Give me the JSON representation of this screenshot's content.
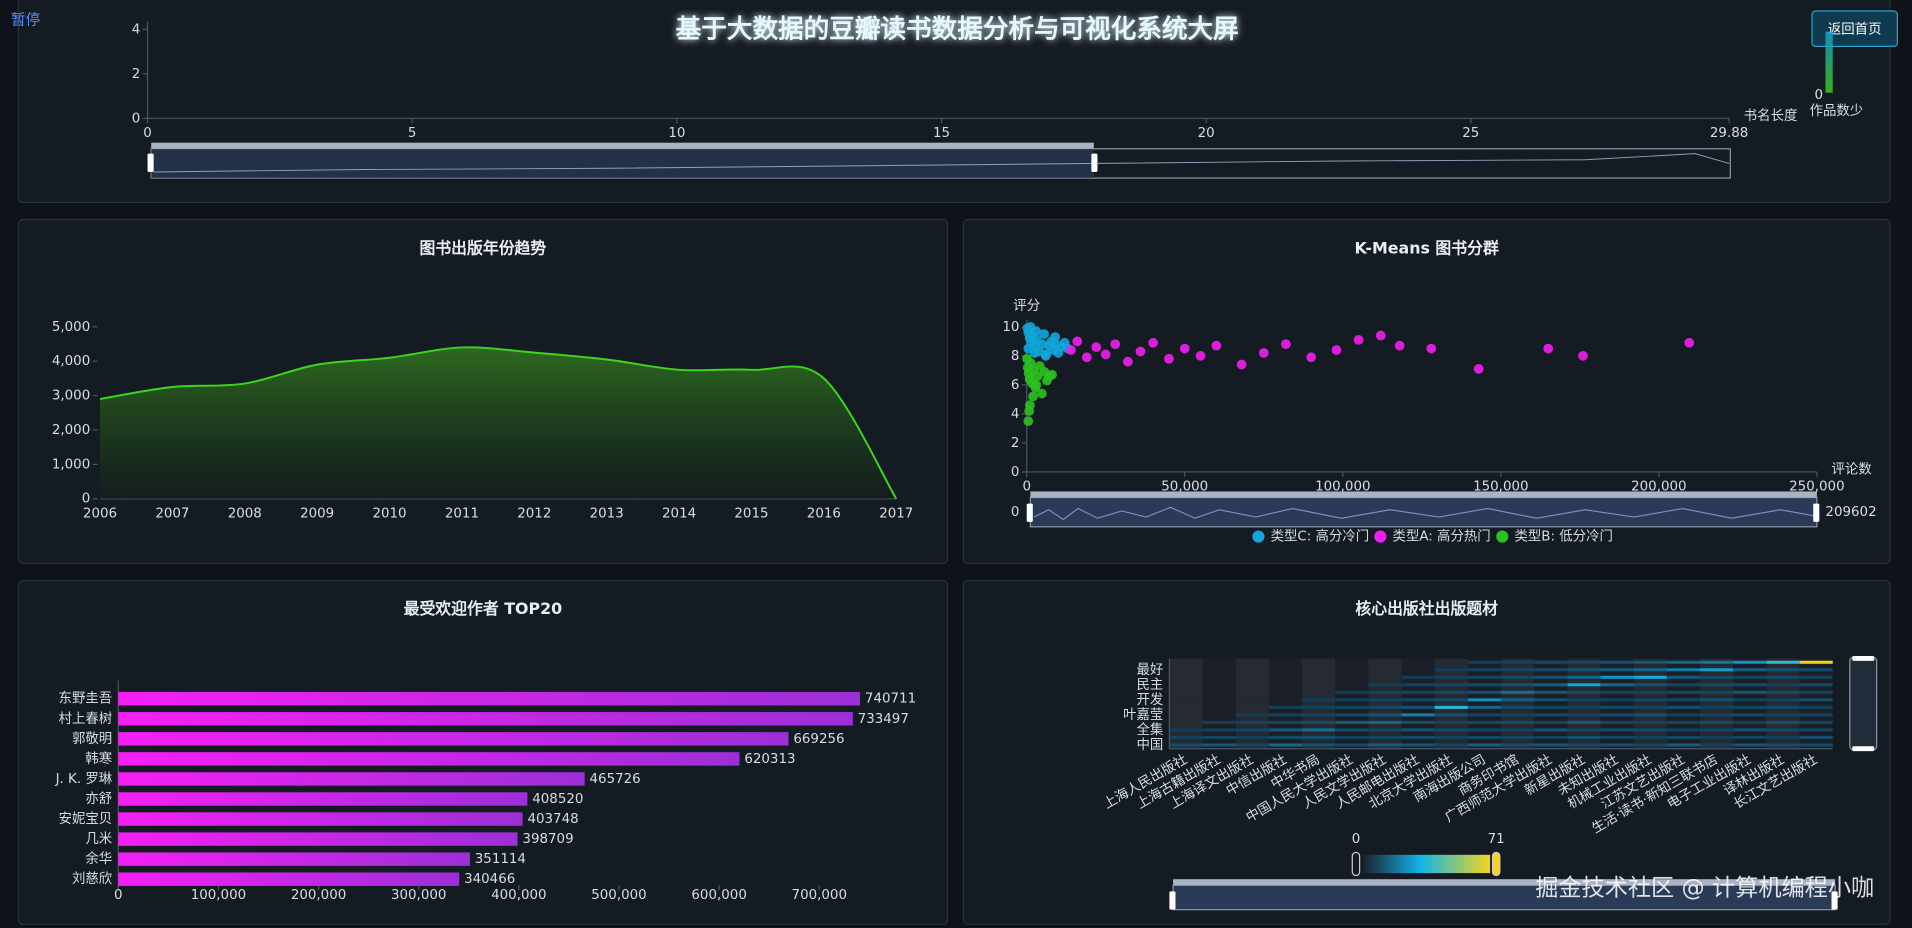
{
  "header": {
    "title": "基于大数据的豆瓣读书数据分析与可视化系统大屏",
    "pause": "暂停",
    "back": "返回首页"
  },
  "watermark": "掘金技术社区 @ 计算机编程小咖",
  "chart_data": [
    {
      "type": "scatter",
      "x_label": "书名长度",
      "xlim": [
        0,
        29.88
      ],
      "xticks": [
        0,
        5,
        10,
        15,
        20,
        25,
        29.88
      ],
      "ylim": [
        0,
        4
      ],
      "yticks": [
        0,
        2,
        4
      ],
      "visual_map": {
        "min": 0,
        "text": "作品数少"
      }
    },
    {
      "type": "area",
      "title": "图书出版年份趋势",
      "color": "#3fd41c",
      "categories": [
        "2006",
        "2007",
        "2008",
        "2009",
        "2010",
        "2011",
        "2012",
        "2013",
        "2014",
        "2015",
        "2016",
        "2017"
      ],
      "values": [
        2900,
        3250,
        3350,
        3900,
        4100,
        4400,
        4250,
        4050,
        3750,
        3750,
        3500,
        0
      ],
      "ylim": [
        0,
        5000
      ],
      "yticks": [
        0,
        {
          "value": 1000,
          "label": "1,000"
        },
        {
          "value": 2000,
          "label": "2,000"
        },
        {
          "value": 3000,
          "label": "3,000"
        },
        {
          "value": 4000,
          "label": "4,000"
        },
        {
          "value": 5000,
          "label": "5,000"
        }
      ]
    },
    {
      "type": "scatter",
      "title": "K-Means 图书分群",
      "x_label": "评论数",
      "y_label": "评分",
      "xlim": [
        0,
        250000
      ],
      "xticks": [
        0,
        {
          "value": 50000,
          "label": "50,000"
        },
        {
          "value": 100000,
          "label": "100,000"
        },
        {
          "value": 150000,
          "label": "150,000"
        },
        {
          "value": 200000,
          "label": "200,000"
        },
        {
          "value": 250000,
          "label": "250,000"
        }
      ],
      "ylim": [
        0,
        10
      ],
      "yticks": [
        0,
        2,
        4,
        6,
        8,
        10
      ],
      "data_zoom": [
        0,
        209602
      ],
      "series": [
        {
          "name": "类型C: 高分冷门",
          "color": "#11a6d9",
          "x": [
            200,
            500,
            900,
            1500,
            2000,
            2600,
            3200,
            4000,
            4800,
            5500,
            6200,
            7000,
            7800,
            8500,
            9200,
            10000,
            11000,
            12000,
            13000,
            1200,
            3000,
            6000,
            9000,
            500,
            2500
          ],
          "values": [
            9.9,
            9.6,
            9.2,
            8.9,
            9.4,
            8.6,
            9.1,
            8.3,
            8.8,
            9.5,
            8.1,
            8.7,
            9.0,
            8.4,
            8.8,
            8.2,
            8.6,
            8.9,
            8.5,
            10.0,
            9.7,
            8.0,
            9.3,
            8.5,
            8.2
          ]
        },
        {
          "name": "类型A: 高分热门",
          "color": "#f01ff0",
          "x": [
            14000,
            16000,
            19000,
            22000,
            25000,
            28000,
            32000,
            36000,
            40000,
            45000,
            50000,
            55000,
            60000,
            68000,
            75000,
            82000,
            90000,
            98000,
            105000,
            112000,
            118000,
            128000,
            143000,
            165000,
            176000,
            209602
          ],
          "values": [
            8.4,
            9.0,
            7.9,
            8.6,
            8.1,
            8.8,
            7.6,
            8.3,
            8.9,
            7.8,
            8.5,
            8.0,
            8.7,
            7.4,
            8.2,
            8.8,
            7.9,
            8.4,
            9.1,
            9.4,
            8.7,
            8.5,
            7.1,
            8.5,
            8.0,
            8.9
          ]
        },
        {
          "name": "类型B: 低分冷门",
          "color": "#2bc21f",
          "x": [
            100,
            300,
            600,
            900,
            1300,
            1700,
            2200,
            2800,
            3400,
            4100,
            4800,
            5600,
            6400,
            7200,
            1000,
            2000,
            500,
            3000,
            800,
            8000
          ],
          "values": [
            7.8,
            7.2,
            6.8,
            6.4,
            7.5,
            6.1,
            7.0,
            5.8,
            6.6,
            7.3,
            5.4,
            6.9,
            6.3,
            6.6,
            4.6,
            5.2,
            3.5,
            6.0,
            4.2,
            6.7
          ]
        }
      ]
    },
    {
      "type": "hbar",
      "title": "最受欢迎作者 TOP20",
      "colors": [
        "#f51ff5",
        "#9d2fd8"
      ],
      "categories": [
        "东野圭吾",
        "村上春树",
        "郭敬明",
        "韩寒",
        "J. K. 罗琳",
        "亦舒",
        "安妮宝贝",
        "几米",
        "余华",
        "刘慈欣"
      ],
      "values": [
        740711,
        733497,
        669256,
        620313,
        465726,
        408520,
        403748,
        398709,
        351114,
        340466
      ],
      "xlim": [
        0,
        800000
      ],
      "xticks": [
        0,
        {
          "value": 100000,
          "label": "100,000"
        },
        {
          "value": 200000,
          "label": "200,000"
        },
        {
          "value": 300000,
          "label": "300,000"
        },
        {
          "value": 400000,
          "label": "400,000"
        },
        {
          "value": 500000,
          "label": "500,000"
        },
        {
          "value": 600000,
          "label": "600,000"
        },
        {
          "value": 700000,
          "label": "700,000"
        }
      ]
    },
    {
      "type": "heatmap",
      "title": "核心出版社出版题材",
      "categories": [
        "上海人民出版社",
        "上海古籍出版社",
        "上海译文出版社",
        "中信出版社",
        "中华书局",
        "中国人民大学出版社",
        "人民文学出版社",
        "人民邮电出版社",
        "北京大学出版社",
        "南海出版公司",
        "商务印书馆",
        "广西师范大学出版社",
        "新星出版社",
        "未知出版社",
        "机械工业出版社",
        "江苏文艺出版社",
        "生活·读书·新知三联书店",
        "电子工业出版社",
        "译林出版社",
        "长江文艺出版社"
      ],
      "y_categories": [
        "中国",
        null,
        "全集",
        null,
        "叶嘉莹",
        null,
        "开发",
        null,
        "民主",
        null,
        "最好",
        null
      ],
      "visual_map": {
        "min": 0,
        "max": 71
      },
      "values": [
        [
          5,
          8,
          3,
          12,
          6,
          4,
          9,
          7,
          3,
          10,
          5,
          8,
          4,
          6,
          3,
          9,
          2,
          7,
          5,
          4
        ],
        [
          2,
          3,
          1,
          4,
          6,
          2,
          3,
          5,
          2,
          4,
          3,
          2,
          6,
          3,
          2,
          4,
          1,
          3,
          2,
          5
        ],
        [
          1,
          2,
          3,
          8,
          14,
          5,
          3,
          6,
          4,
          3,
          2,
          7,
          3,
          5,
          4,
          2,
          3,
          6,
          4,
          3
        ],
        [
          0,
          1,
          2,
          3,
          5,
          9,
          12,
          6,
          3,
          4,
          5,
          3,
          8,
          4,
          2,
          3,
          5,
          2,
          6,
          4
        ],
        [
          0,
          0,
          1,
          2,
          3,
          4,
          7,
          18,
          6,
          3,
          2,
          4,
          3,
          5,
          6,
          2,
          3,
          4,
          2,
          3
        ],
        [
          0,
          0,
          0,
          1,
          2,
          3,
          4,
          6,
          35,
          12,
          4,
          3,
          2,
          4,
          3,
          5,
          2,
          3,
          4,
          2
        ],
        [
          0,
          0,
          0,
          0,
          1,
          2,
          3,
          4,
          5,
          22,
          9,
          6,
          3,
          2,
          4,
          3,
          6,
          2,
          3,
          5
        ],
        [
          0,
          0,
          0,
          0,
          0,
          1,
          2,
          3,
          4,
          6,
          14,
          8,
          5,
          3,
          2,
          4,
          3,
          8,
          5,
          3
        ],
        [
          0,
          0,
          0,
          0,
          0,
          0,
          1,
          2,
          3,
          4,
          6,
          10,
          28,
          12,
          6,
          3,
          4,
          5,
          2,
          4
        ],
        [
          0,
          0,
          0,
          0,
          0,
          0,
          0,
          1,
          2,
          3,
          4,
          6,
          12,
          24,
          30,
          9,
          5,
          3,
          4,
          2
        ],
        [
          0,
          0,
          0,
          0,
          0,
          0,
          0,
          0,
          1,
          2,
          3,
          4,
          6,
          9,
          12,
          18,
          26,
          10,
          6,
          4
        ],
        [
          0,
          0,
          0,
          0,
          0,
          0,
          0,
          0,
          0,
          1,
          2,
          3,
          4,
          6,
          8,
          12,
          16,
          24,
          38,
          71
        ]
      ]
    }
  ]
}
